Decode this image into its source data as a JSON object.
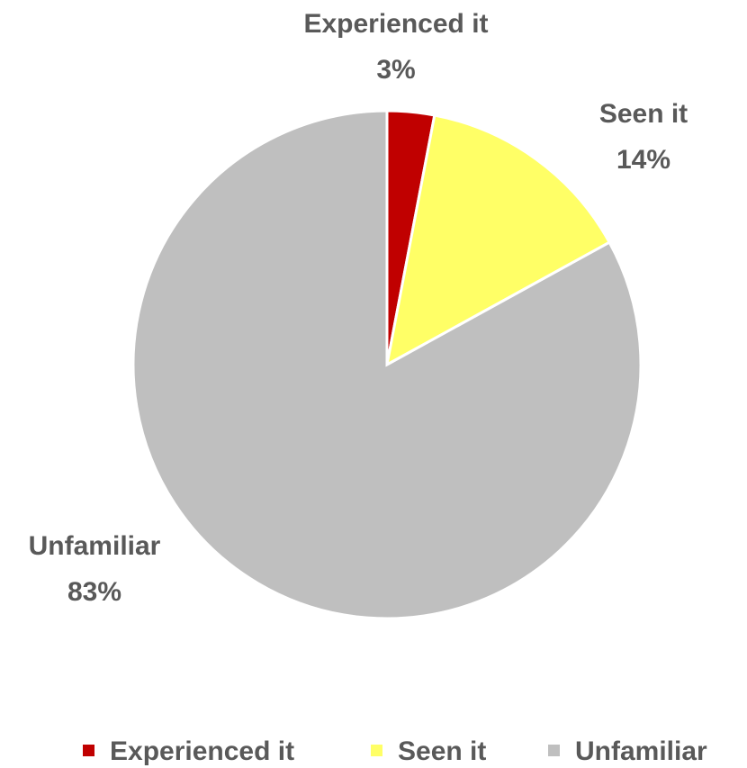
{
  "chart_data": {
    "type": "pie",
    "categories": [
      "Experienced it",
      "Seen it",
      "Unfamiliar"
    ],
    "values": [
      3,
      14,
      83
    ],
    "value_labels": [
      "3%",
      "14%",
      "83%"
    ],
    "colors": [
      "#c00000",
      "#ffff66",
      "#bfbfbf"
    ],
    "legend": "bottom"
  }
}
